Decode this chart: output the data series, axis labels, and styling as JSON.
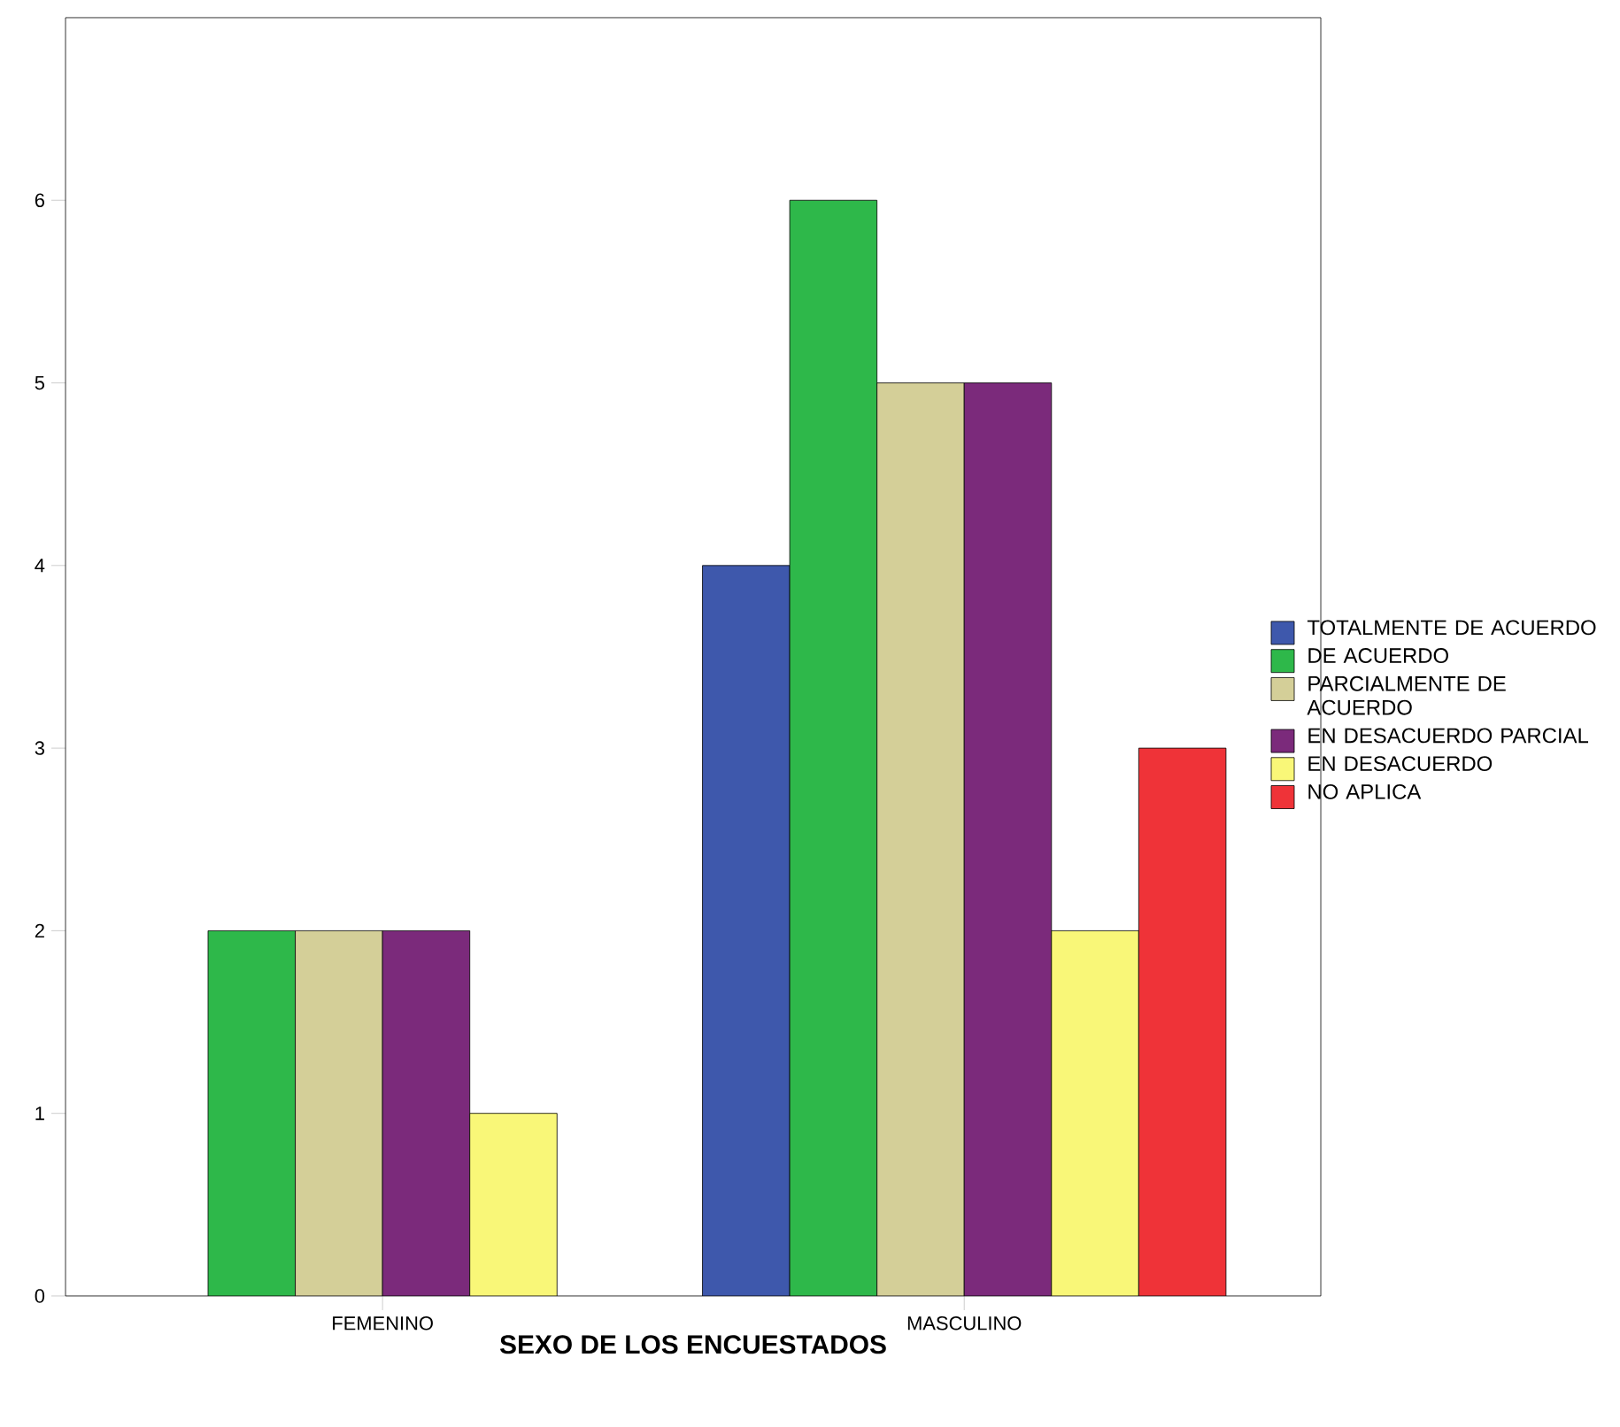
{
  "chart_data": {
    "type": "bar",
    "xlabel": "SEXO DE LOS ENCUESTADOS",
    "categories": [
      "FEMENINO",
      "MASCULINO"
    ],
    "series": [
      {
        "name": "TOTALMENTE DE ACUERDO",
        "color": "#3e58ac",
        "values": [
          null,
          4
        ]
      },
      {
        "name": "DE ACUERDO",
        "color": "#2eb84a",
        "values": [
          2,
          6
        ]
      },
      {
        "name": "PARCIALMENTE DE ACUERDO",
        "color": "#d4cf98",
        "values": [
          2,
          5
        ]
      },
      {
        "name": "EN DESACUERDO PARCIAL",
        "color": "#7b2a7b",
        "values": [
          2,
          5
        ]
      },
      {
        "name": "EN DESACUERDO",
        "color": "#f9f778",
        "values": [
          1,
          2
        ]
      },
      {
        "name": "NO APLICA",
        "color": "#ef3338",
        "values": [
          null,
          3
        ]
      }
    ],
    "ylim": [
      0,
      7
    ],
    "yticks": [
      0,
      1,
      2,
      3,
      4,
      5,
      6
    ],
    "grid": false,
    "legend": "right"
  }
}
